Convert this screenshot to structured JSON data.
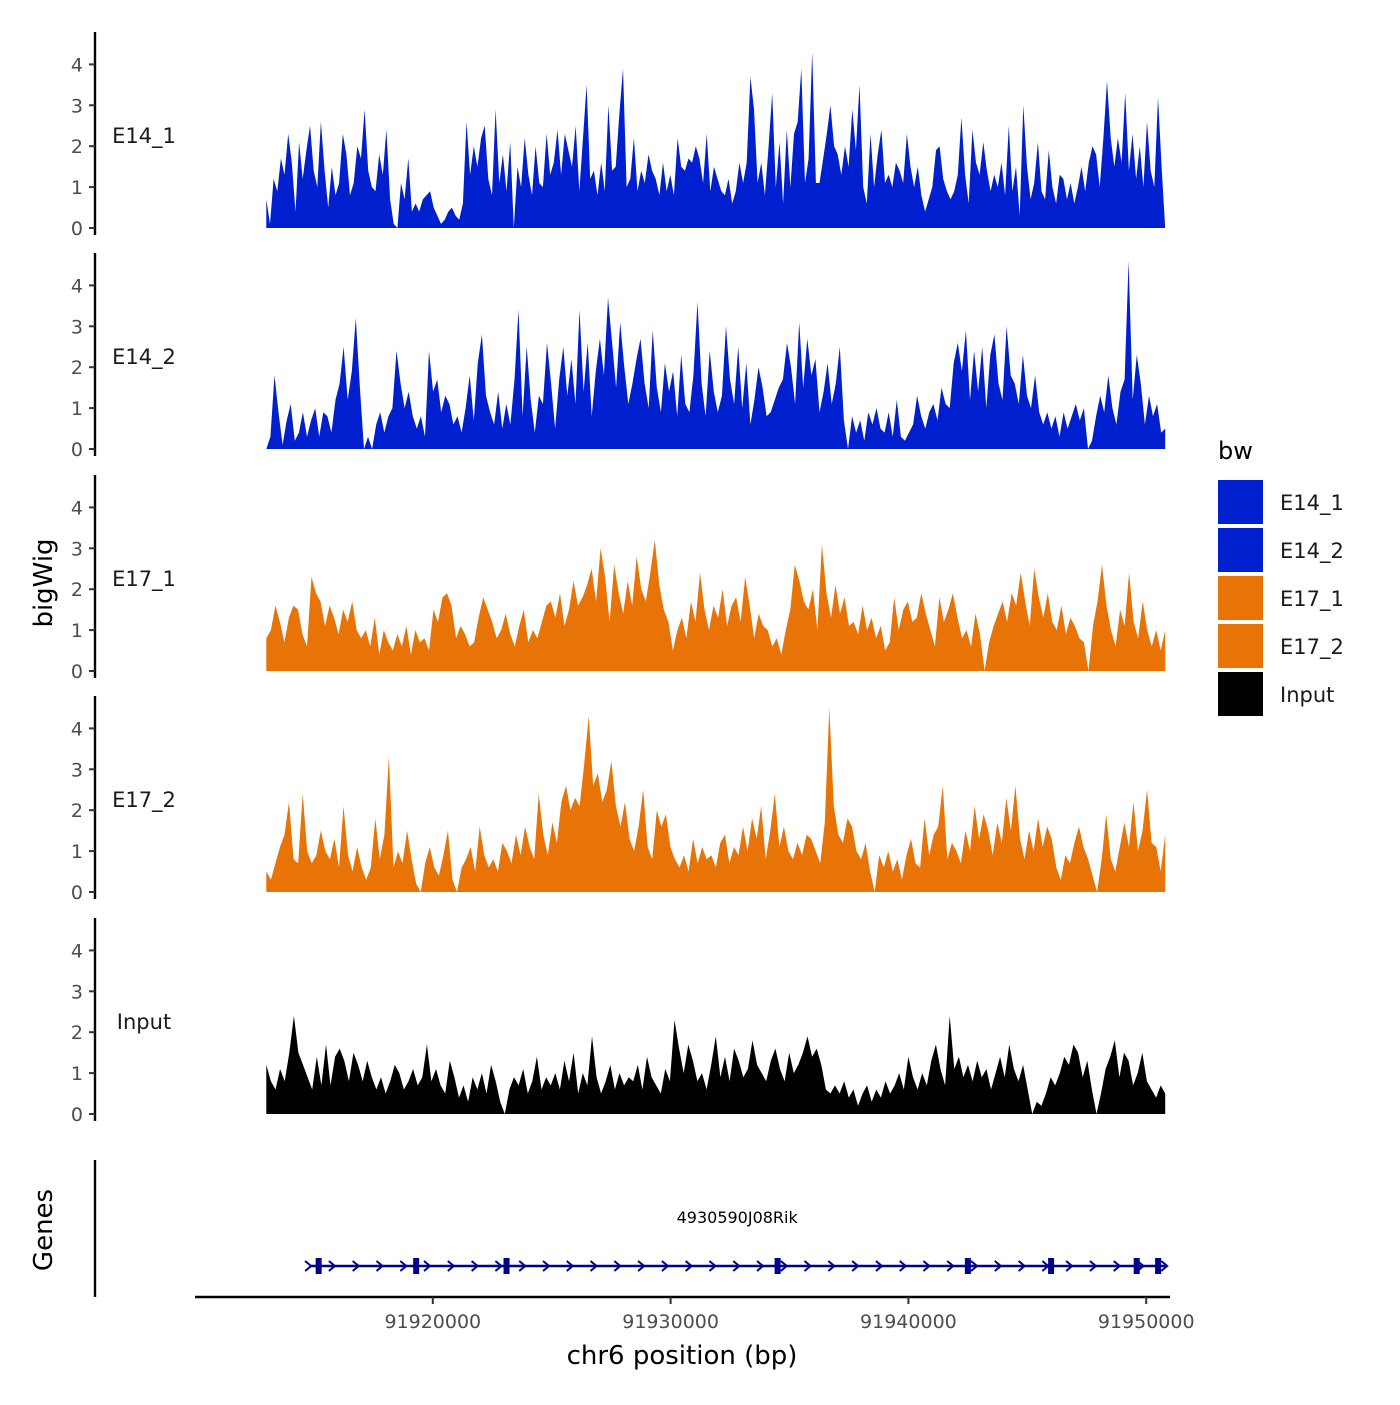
{
  "chart_data": {
    "type": "area",
    "xlabel": "chr6 position (bp)",
    "ylabel": "bigWig",
    "xlim": [
      91910000,
      91951000
    ],
    "x_ticks": [
      91920000,
      91930000,
      91940000,
      91950000
    ],
    "x_tick_labels": [
      "91920000",
      "91930000",
      "91940000",
      "91950000"
    ],
    "ylim": [
      0,
      4.7
    ],
    "y_ticks": [
      0,
      1,
      2,
      3,
      4
    ],
    "y_tick_labels": [
      "0",
      "1",
      "2",
      "3",
      "4"
    ],
    "series_x_range": [
      91913000,
      91950800
    ],
    "series": [
      {
        "name": "E14_1",
        "color": "#0020D0",
        "values": [
          0.7,
          0.1,
          1.2,
          0.9,
          1.7,
          1.3,
          2.3,
          1.6,
          0.4,
          2.1,
          1.2,
          1.9,
          2.5,
          1.4,
          1.0,
          2.6,
          1.4,
          0.5,
          1.5,
          0.8,
          1.1,
          2.3,
          1.8,
          0.8,
          1.1,
          2.0,
          1.7,
          2.9,
          1.4,
          1.0,
          0.9,
          1.8,
          1.3,
          2.4,
          0.7,
          0.1,
          0.0,
          1.1,
          0.7,
          1.7,
          0.4,
          0.6,
          0.4,
          0.7,
          0.8,
          0.9,
          0.5,
          0.3,
          0.1,
          0.2,
          0.4,
          0.5,
          0.3,
          0.2,
          0.6,
          2.6,
          1.3,
          2.0,
          1.5,
          2.2,
          2.5,
          1.2,
          0.8,
          2.9,
          1.1,
          1.8,
          0.9,
          2.1,
          0.0,
          1.5,
          1.0,
          2.2,
          1.3,
          0.8,
          2.0,
          1.1,
          1.0,
          2.3,
          1.3,
          1.6,
          2.4,
          1.3,
          2.3,
          1.9,
          1.5,
          2.5,
          0.9,
          2.2,
          3.5,
          1.2,
          1.4,
          0.8,
          1.6,
          0.9,
          3.0,
          1.4,
          1.5,
          2.8,
          3.9,
          1.0,
          1.2,
          2.2,
          0.9,
          1.4,
          1.1,
          1.8,
          1.4,
          1.2,
          0.8,
          1.6,
          0.9,
          1.3,
          0.8,
          2.2,
          1.5,
          1.4,
          1.7,
          1.6,
          2.0,
          1.7,
          1.1,
          2.3,
          0.9,
          1.5,
          1.2,
          0.9,
          0.8,
          1.2,
          0.6,
          0.9,
          1.6,
          1.1,
          1.6,
          3.7,
          2.9,
          1.1,
          1.6,
          0.8,
          2.0,
          3.3,
          1.0,
          2.1,
          0.6,
          2.4,
          1.0,
          2.3,
          2.6,
          3.9,
          1.1,
          1.7,
          4.3,
          1.1,
          1.1,
          1.7,
          2.3,
          3.0,
          2.0,
          1.8,
          1.3,
          2.0,
          1.5,
          2.9,
          1.9,
          3.5,
          1.0,
          0.6,
          2.3,
          1.0,
          1.8,
          2.4,
          1.1,
          1.3,
          1.0,
          1.6,
          1.4,
          1.1,
          2.3,
          1.5,
          1.0,
          1.5,
          0.8,
          0.4,
          0.7,
          1.0,
          1.9,
          2.0,
          1.2,
          0.9,
          0.7,
          0.9,
          1.3,
          2.7,
          1.3,
          0.6,
          2.4,
          1.6,
          1.3,
          2.1,
          1.4,
          0.9,
          1.3,
          1.0,
          1.6,
          0.8,
          2.5,
          0.9,
          1.5,
          0.3,
          3.0,
          1.5,
          0.7,
          1.1,
          2.1,
          0.9,
          0.7,
          1.9,
          1.0,
          0.6,
          1.3,
          1.2,
          0.7,
          1.1,
          0.6,
          1.0,
          1.5,
          0.9,
          1.6,
          2.0,
          1.8,
          1.0,
          2.2,
          3.6,
          2.2,
          1.5,
          2.2,
          1.6,
          3.3,
          1.4,
          2.3,
          1.2,
          2.0,
          1.0,
          2.6,
          1.4,
          1.0,
          3.2,
          1.5,
          0.0
        ]
      },
      {
        "name": "E14_2",
        "color": "#0020D0",
        "values": [
          0.0,
          0.3,
          1.8,
          0.9,
          0.1,
          0.7,
          1.1,
          0.2,
          0.4,
          0.9,
          0.3,
          0.7,
          1.0,
          0.3,
          0.9,
          0.8,
          0.4,
          1.2,
          1.6,
          2.5,
          1.2,
          1.9,
          3.2,
          1.5,
          0.0,
          0.3,
          0.0,
          0.6,
          0.9,
          0.4,
          0.8,
          1.0,
          2.4,
          1.6,
          1.0,
          1.4,
          0.8,
          0.5,
          0.8,
          0.3,
          2.4,
          1.4,
          1.7,
          0.9,
          1.3,
          1.1,
          0.6,
          0.8,
          0.4,
          1.0,
          1.8,
          0.7,
          2.1,
          2.8,
          1.3,
          0.9,
          0.6,
          1.4,
          0.5,
          1.1,
          0.6,
          1.7,
          3.4,
          0.8,
          2.5,
          1.2,
          0.4,
          1.3,
          1.1,
          2.6,
          1.6,
          0.5,
          1.7,
          2.5,
          1.3,
          2.2,
          1.1,
          3.4,
          1.4,
          2.6,
          0.8,
          1.9,
          2.7,
          1.8,
          3.7,
          2.6,
          1.5,
          3.1,
          2.0,
          1.1,
          1.6,
          2.2,
          2.7,
          1.6,
          1.0,
          2.9,
          1.5,
          0.9,
          2.1,
          1.4,
          1.9,
          0.8,
          2.3,
          1.1,
          0.9,
          1.8,
          3.6,
          1.6,
          0.8,
          2.4,
          1.4,
          0.9,
          1.3,
          3.0,
          1.7,
          1.1,
          2.5,
          1.0,
          2.1,
          0.6,
          1.2,
          2.0,
          1.5,
          0.8,
          0.9,
          1.2,
          1.5,
          1.7,
          2.6,
          2.0,
          1.1,
          3.1,
          1.5,
          2.7,
          1.8,
          2.2,
          0.9,
          1.4,
          2.1,
          1.1,
          1.6,
          2.5,
          0.7,
          0.0,
          0.8,
          0.4,
          0.7,
          0.2,
          0.9,
          0.6,
          1.0,
          0.5,
          0.4,
          0.9,
          0.3,
          1.2,
          0.3,
          0.2,
          0.4,
          0.6,
          1.3,
          0.8,
          0.5,
          0.9,
          1.1,
          0.7,
          1.5,
          1.1,
          1.0,
          2.1,
          2.6,
          1.9,
          2.9,
          1.2,
          2.4,
          1.4,
          2.5,
          1.0,
          2.3,
          2.8,
          1.6,
          1.2,
          3.0,
          1.8,
          1.6,
          1.1,
          2.3,
          1.3,
          1.0,
          1.8,
          0.9,
          0.6,
          0.9,
          0.5,
          0.8,
          0.3,
          0.9,
          0.5,
          0.8,
          1.1,
          0.7,
          1.0,
          0.0,
          0.2,
          0.8,
          1.3,
          0.9,
          1.8,
          1.0,
          0.6,
          1.4,
          1.7,
          4.6,
          1.2,
          2.3,
          1.6,
          0.6,
          1.3,
          0.8,
          1.1,
          0.4,
          0.5
        ]
      },
      {
        "name": "E17_1",
        "color": "#E87306",
        "values": [
          0.8,
          1.0,
          1.6,
          1.2,
          0.7,
          1.3,
          1.6,
          1.5,
          0.9,
          0.6,
          2.3,
          1.9,
          1.7,
          1.1,
          1.6,
          1.3,
          0.9,
          1.5,
          1.2,
          1.7,
          1.0,
          0.8,
          1.0,
          0.6,
          1.3,
          0.4,
          1.0,
          0.7,
          0.5,
          0.9,
          0.6,
          1.1,
          0.4,
          1.0,
          0.7,
          0.8,
          0.5,
          1.5,
          1.2,
          1.8,
          1.9,
          1.6,
          0.8,
          1.1,
          0.9,
          0.6,
          0.7,
          1.3,
          1.8,
          1.5,
          1.2,
          0.8,
          1.0,
          1.4,
          0.9,
          0.6,
          1.1,
          1.5,
          0.7,
          1.0,
          0.8,
          1.2,
          1.6,
          1.7,
          1.3,
          1.9,
          1.1,
          1.5,
          2.2,
          1.6,
          1.8,
          2.1,
          2.5,
          1.7,
          3.0,
          2.3,
          1.2,
          2.6,
          1.9,
          1.4,
          2.2,
          1.6,
          2.8,
          2.0,
          1.7,
          2.4,
          3.2,
          2.1,
          1.5,
          1.2,
          0.5,
          1.0,
          1.3,
          0.8,
          1.7,
          1.2,
          2.4,
          1.5,
          1.0,
          1.6,
          1.3,
          2.0,
          1.1,
          1.6,
          1.8,
          1.2,
          2.3,
          1.6,
          0.8,
          1.4,
          1.1,
          1.0,
          0.6,
          0.8,
          0.4,
          1.0,
          1.5,
          2.6,
          2.2,
          1.7,
          1.5,
          2.0,
          1.0,
          3.1,
          1.9,
          1.3,
          2.1,
          1.4,
          1.8,
          1.1,
          1.2,
          0.9,
          1.6,
          1.0,
          1.3,
          0.8,
          1.1,
          0.5,
          0.7,
          1.8,
          1.0,
          1.5,
          1.7,
          1.2,
          1.3,
          1.9,
          1.4,
          1.0,
          0.6,
          1.8,
          1.2,
          1.5,
          1.9,
          1.3,
          0.8,
          1.0,
          0.6,
          1.4,
          0.9,
          0.0,
          0.7,
          1.1,
          1.4,
          1.7,
          1.2,
          1.9,
          1.6,
          2.4,
          1.7,
          1.1,
          2.5,
          1.8,
          1.3,
          1.9,
          1.2,
          1.0,
          1.6,
          0.9,
          1.3,
          1.1,
          0.8,
          0.7,
          0.0,
          1.1,
          1.7,
          2.6,
          1.6,
          1.0,
          0.6,
          1.5,
          1.1,
          2.4,
          1.2,
          0.8,
          1.7,
          1.0,
          0.6,
          1.0,
          0.5,
          1.0
        ]
      },
      {
        "name": "E17_2",
        "color": "#E87306",
        "values": [
          0.5,
          0.3,
          0.7,
          1.1,
          1.4,
          2.2,
          0.8,
          0.7,
          2.4,
          1.0,
          0.7,
          0.9,
          1.5,
          1.0,
          0.8,
          1.3,
          0.6,
          2.1,
          0.9,
          0.5,
          1.1,
          0.6,
          0.3,
          0.6,
          1.8,
          0.8,
          1.4,
          3.3,
          0.6,
          1.0,
          0.7,
          1.5,
          0.8,
          0.2,
          0.0,
          0.7,
          1.1,
          0.6,
          0.4,
          0.9,
          1.5,
          0.3,
          0.0,
          0.6,
          0.8,
          1.1,
          0.5,
          1.6,
          0.9,
          0.6,
          0.8,
          0.5,
          1.2,
          1.0,
          0.7,
          1.4,
          0.9,
          1.6,
          1.1,
          0.8,
          2.4,
          1.4,
          0.9,
          1.7,
          1.2,
          2.2,
          2.6,
          2.0,
          2.3,
          2.1,
          3.1,
          4.3,
          2.6,
          2.9,
          2.2,
          2.5,
          3.2,
          2.1,
          1.6,
          2.2,
          1.3,
          1.0,
          1.6,
          2.5,
          1.1,
          0.8,
          2.0,
          1.6,
          1.9,
          1.1,
          0.8,
          0.6,
          0.9,
          0.5,
          1.3,
          0.7,
          1.1,
          0.8,
          0.9,
          0.6,
          1.2,
          1.4,
          0.7,
          1.1,
          0.9,
          1.6,
          1.0,
          1.8,
          1.3,
          2.1,
          0.8,
          1.5,
          2.4,
          1.1,
          1.6,
          1.0,
          0.8,
          1.2,
          0.9,
          1.4,
          1.3,
          1.0,
          0.7,
          1.7,
          4.5,
          2.1,
          1.4,
          1.2,
          1.8,
          1.6,
          1.0,
          0.8,
          1.2,
          0.5,
          0.0,
          0.9,
          0.6,
          1.0,
          0.5,
          0.8,
          0.3,
          0.9,
          1.3,
          0.7,
          0.6,
          1.8,
          0.9,
          1.4,
          1.6,
          2.6,
          0.8,
          1.2,
          1.0,
          0.7,
          1.5,
          1.0,
          2.1,
          1.3,
          1.9,
          1.5,
          0.9,
          1.7,
          1.2,
          2.3,
          1.5,
          2.6,
          1.3,
          0.8,
          1.5,
          1.0,
          1.8,
          1.1,
          1.6,
          1.3,
          0.6,
          0.3,
          0.9,
          0.7,
          1.2,
          1.6,
          1.1,
          0.8,
          0.4,
          0.0,
          0.8,
          1.9,
          0.8,
          0.5,
          1.1,
          1.7,
          1.1,
          2.2,
          1.0,
          1.5,
          2.5,
          1.2,
          1.1,
          0.5,
          1.4
        ]
      },
      {
        "name": "Input",
        "color": "#000000",
        "values": [
          1.2,
          0.8,
          0.6,
          1.1,
          0.8,
          1.5,
          2.4,
          1.5,
          1.2,
          0.9,
          0.6,
          1.4,
          0.7,
          1.7,
          0.7,
          1.4,
          1.6,
          1.3,
          0.8,
          1.5,
          1.2,
          0.8,
          1.3,
          0.9,
          0.6,
          0.9,
          0.5,
          0.8,
          1.2,
          1.0,
          0.6,
          0.8,
          1.1,
          0.7,
          0.9,
          1.7,
          0.8,
          1.1,
          0.7,
          0.5,
          1.3,
          0.9,
          0.4,
          0.7,
          0.3,
          0.9,
          0.6,
          1.0,
          0.5,
          1.2,
          0.8,
          0.3,
          0.0,
          0.6,
          0.9,
          0.7,
          1.1,
          0.5,
          0.8,
          1.4,
          0.6,
          0.9,
          0.7,
          1.0,
          0.6,
          1.3,
          0.8,
          1.5,
          0.5,
          1.0,
          0.7,
          1.9,
          0.9,
          0.5,
          0.8,
          1.2,
          0.6,
          1.0,
          0.7,
          0.9,
          0.8,
          1.2,
          0.6,
          1.4,
          0.9,
          0.7,
          0.5,
          1.1,
          0.8,
          2.3,
          1.6,
          1.0,
          1.7,
          1.3,
          0.8,
          1.0,
          0.6,
          1.2,
          1.9,
          0.9,
          1.4,
          0.8,
          1.6,
          1.3,
          0.9,
          1.1,
          1.8,
          1.2,
          1.0,
          0.8,
          1.3,
          1.6,
          1.1,
          0.8,
          1.5,
          1.0,
          1.2,
          1.5,
          1.9,
          1.4,
          1.6,
          1.2,
          0.6,
          0.5,
          0.7,
          0.5,
          0.8,
          0.4,
          0.6,
          0.2,
          0.5,
          0.7,
          0.3,
          0.6,
          0.4,
          0.8,
          0.5,
          0.7,
          1.0,
          0.6,
          1.4,
          0.9,
          0.6,
          1.0,
          0.7,
          1.3,
          1.7,
          1.1,
          0.7,
          2.4,
          1.1,
          1.4,
          0.9,
          1.2,
          0.8,
          1.3,
          0.9,
          1.1,
          0.6,
          1.0,
          1.4,
          0.9,
          1.7,
          1.1,
          0.8,
          1.2,
          0.6,
          0.0,
          0.3,
          0.2,
          0.5,
          0.9,
          0.7,
          1.0,
          1.4,
          1.2,
          1.7,
          1.5,
          0.9,
          1.3,
          0.6,
          0.0,
          0.5,
          1.1,
          1.4,
          1.8,
          0.9,
          1.5,
          1.3,
          0.7,
          1.0,
          1.5,
          0.8,
          0.6,
          0.4,
          0.7,
          0.5
        ]
      }
    ],
    "genes_track": {
      "label": "Genes",
      "gene_name": "4930590J08Rik",
      "start": 91914800,
      "end": 91950800,
      "strand": "+",
      "color": "#00008B",
      "exons": [
        91915200,
        91919300,
        91923100,
        91934500,
        91942500,
        91946000,
        91949600,
        91950500
      ]
    },
    "legend": {
      "title": "bw",
      "position": "right",
      "items": [
        {
          "label": "E14_1",
          "color": "#0020D0"
        },
        {
          "label": "E14_2",
          "color": "#0020D0"
        },
        {
          "label": "E17_1",
          "color": "#E87306"
        },
        {
          "label": "E17_2",
          "color": "#E87306"
        },
        {
          "label": "Input",
          "color": "#000000"
        }
      ]
    }
  }
}
